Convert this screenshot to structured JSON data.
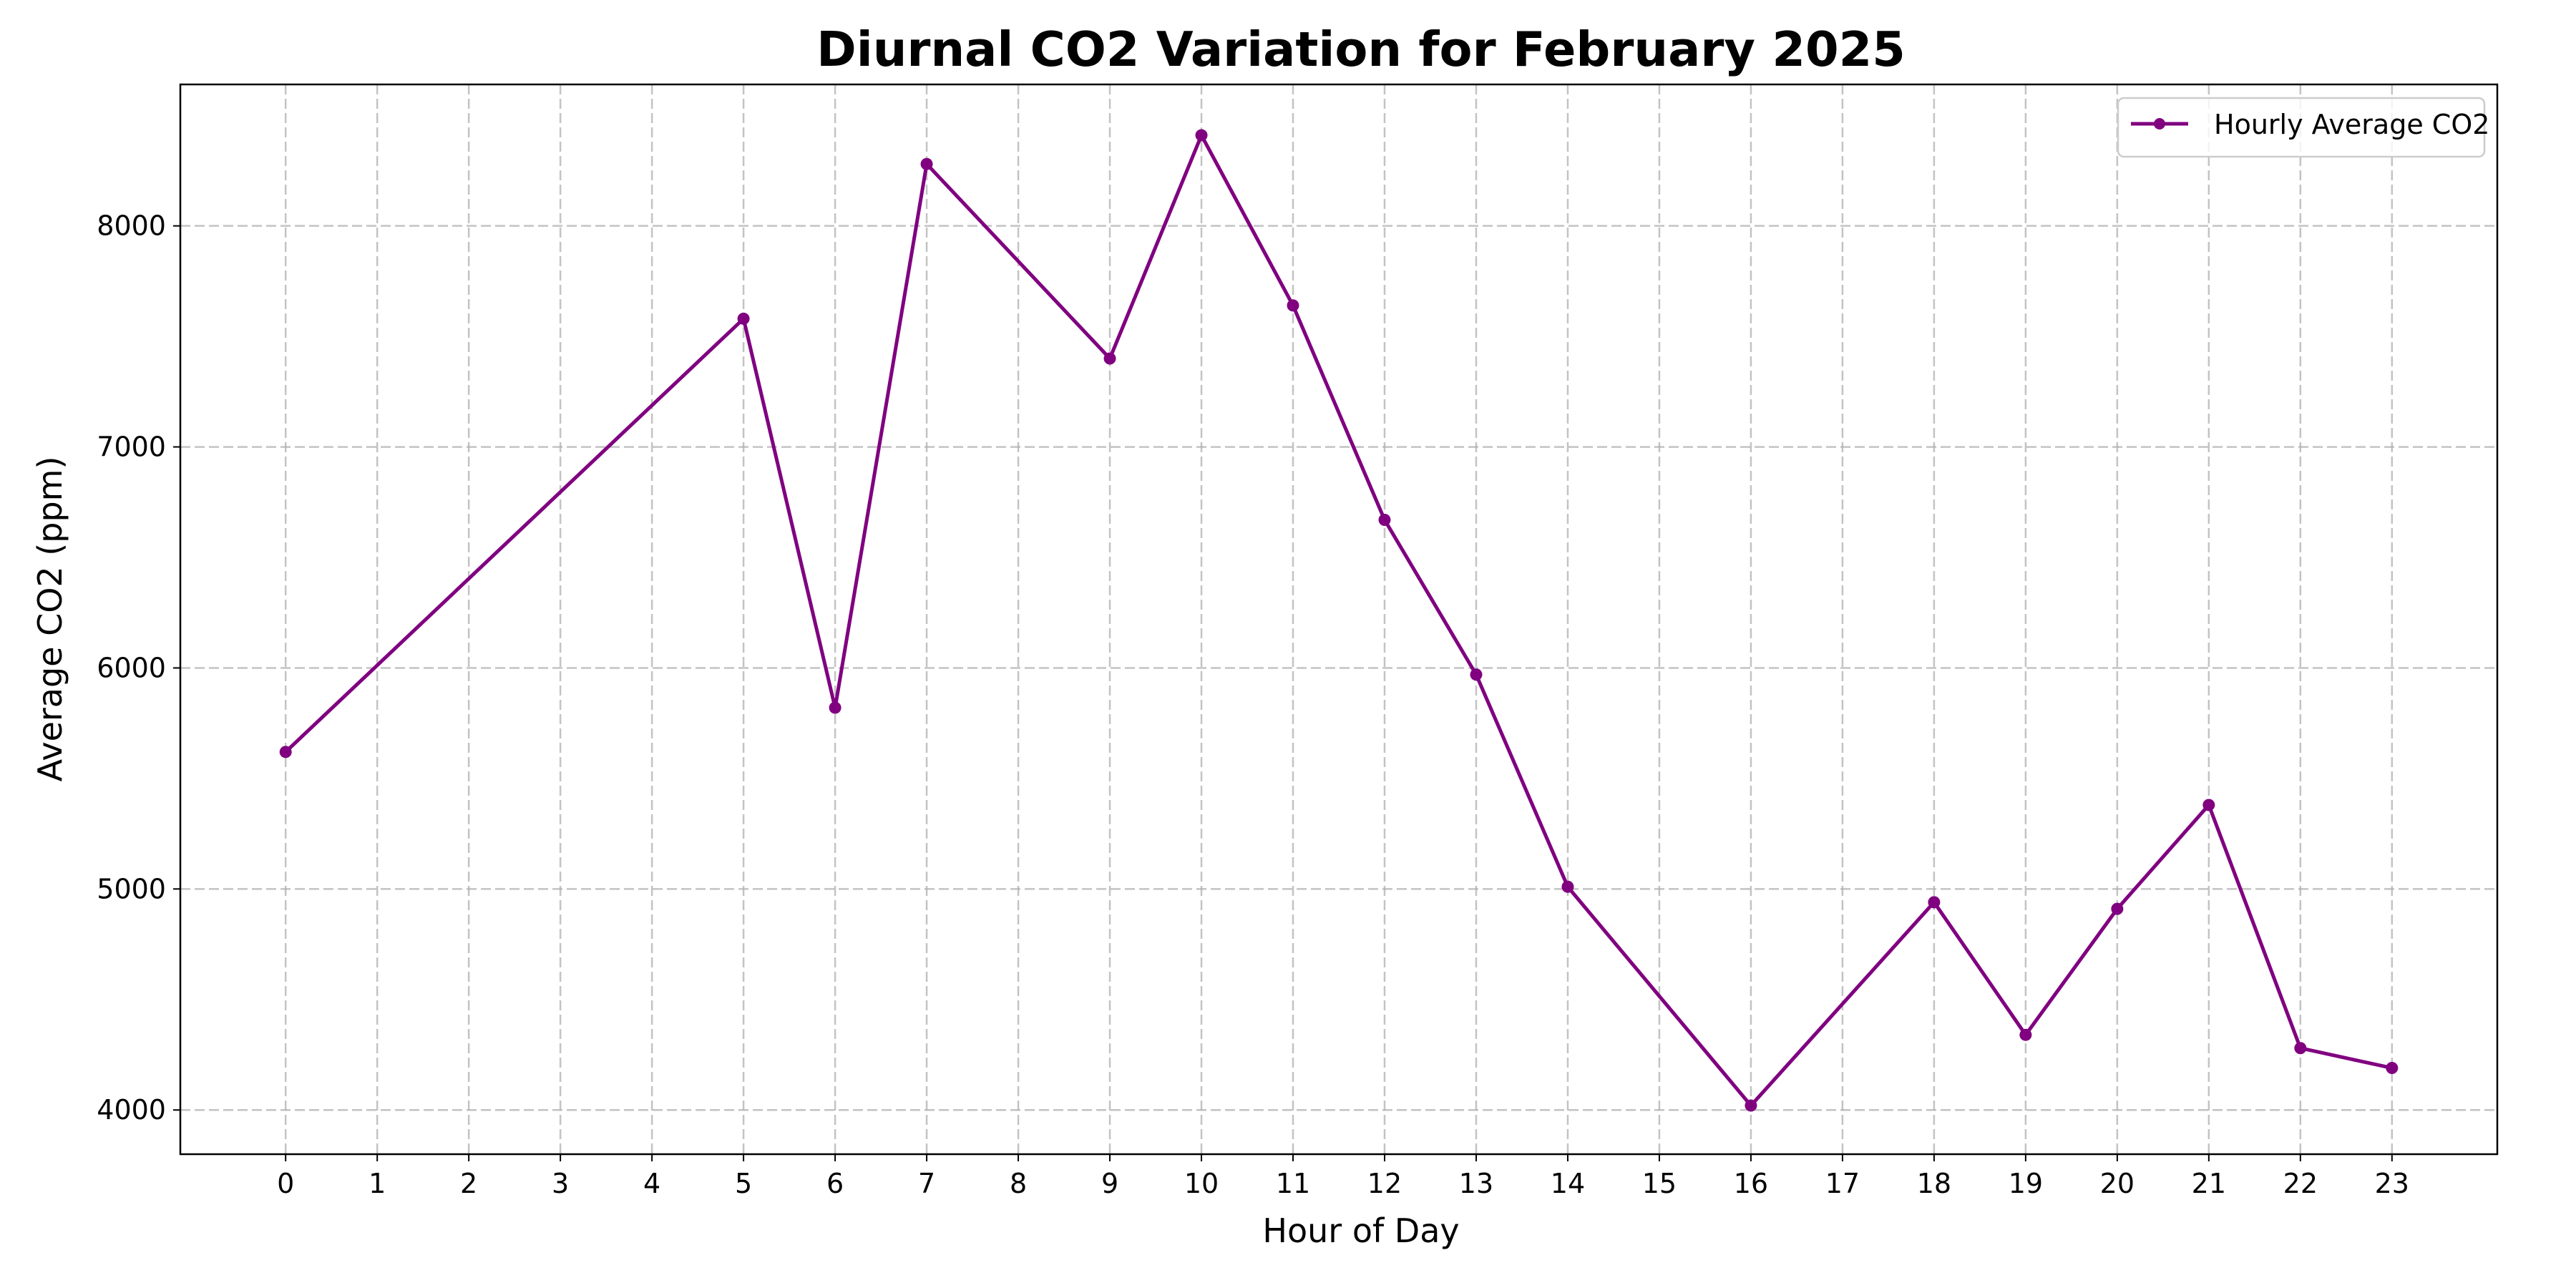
{
  "chart_data": {
    "type": "line",
    "title": "Diurnal CO2 Variation for February 2025",
    "xlabel": "Hour of Day",
    "ylabel": "Average CO2 (ppm)",
    "x_ticks": [
      0,
      1,
      2,
      3,
      4,
      5,
      6,
      7,
      8,
      9,
      10,
      11,
      12,
      13,
      14,
      15,
      16,
      17,
      18,
      19,
      20,
      21,
      22,
      23
    ],
    "y_ticks": [
      4000,
      5000,
      6000,
      7000,
      8000
    ],
    "xlim": [
      -1.15,
      24.15
    ],
    "ylim": [
      3800,
      8640
    ],
    "grid": true,
    "legend_position": "top-right",
    "series": [
      {
        "name": "Hourly Average CO2",
        "color": "#800080",
        "marker": "circle",
        "x": [
          0,
          5,
          6,
          7,
          9,
          10,
          11,
          12,
          13,
          14,
          16,
          18,
          19,
          20,
          21,
          22,
          23
        ],
        "y": [
          5620,
          7580,
          5820,
          8280,
          7400,
          8410,
          7640,
          6670,
          5970,
          5010,
          4020,
          4940,
          4340,
          4910,
          5380,
          4280,
          4190
        ]
      }
    ]
  }
}
